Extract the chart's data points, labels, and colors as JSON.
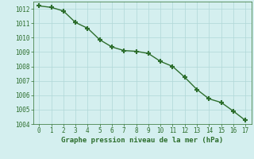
{
  "x": [
    0,
    1,
    2,
    3,
    4,
    5,
    6,
    7,
    8,
    9,
    10,
    11,
    12,
    13,
    14,
    15,
    16,
    17
  ],
  "y": [
    1012.2,
    1012.1,
    1011.85,
    1011.05,
    1010.65,
    1009.85,
    1009.35,
    1009.1,
    1009.05,
    1008.9,
    1008.35,
    1008.0,
    1007.25,
    1006.4,
    1005.75,
    1005.5,
    1004.9,
    1004.25
  ],
  "line_color": "#2d6e2d",
  "marker": "+",
  "bg_color": "#d4efef",
  "grid_color": "#b0d8d8",
  "ylim": [
    1004,
    1012.5
  ],
  "yticks": [
    1004,
    1005,
    1006,
    1007,
    1008,
    1009,
    1010,
    1011,
    1012
  ],
  "xlim": [
    -0.5,
    17.5
  ],
  "xticks": [
    0,
    1,
    2,
    3,
    4,
    5,
    6,
    7,
    8,
    9,
    10,
    11,
    12,
    13,
    14,
    15,
    16,
    17
  ],
  "xlabel": "Graphe pression niveau de la mer (hPa)",
  "tick_color": "#2d6e2d",
  "label_color": "#2d6e2d",
  "marker_size": 4,
  "line_width": 1.0
}
